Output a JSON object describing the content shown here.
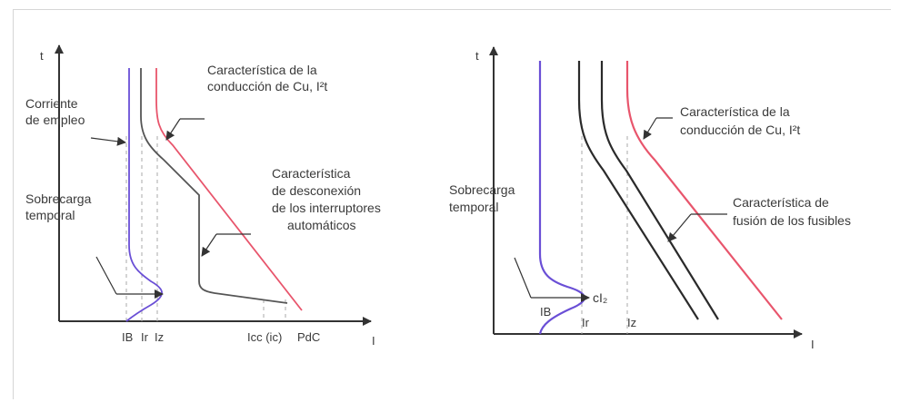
{
  "colors": {
    "axis": "#333333",
    "blue": "#6a4fd6",
    "red": "#e8556c",
    "black": "#2a2a2a",
    "gray": "#555555",
    "dashes": "#aaaaaa"
  },
  "left": {
    "t_axis": "t",
    "i_axis": "I",
    "cu_label_line1": "Característica de la",
    "cu_label_line2": "conducción de Cu, I²t",
    "empleo_line1": "Corriente",
    "empleo_line2": "de empleo",
    "sobrecarga_line1": "Sobrecarga",
    "sobrecarga_line2": "temporal",
    "desc_line1": "Característica",
    "desc_line2": "de desconexión",
    "desc_line3": "de los interruptores",
    "desc_line4": "automáticos",
    "tick_ib": "IB",
    "tick_ir": "Ir",
    "tick_iz": "Iz",
    "tick_icc": "Icc (ic)",
    "tick_pdc": "PdC"
  },
  "right": {
    "t_axis": "t",
    "i_axis": "I",
    "cu_label_line1": "Característica de la",
    "cu_label_line2": "conducción de Cu, I²t",
    "fusion_line1": "Característica de",
    "fusion_line2": "fusión de los fusibles",
    "sobrecarga_line1": "Sobrecarga",
    "sobrecarga_line2": "temporal",
    "cl_label": "cI₂",
    "tick_ib": "IB",
    "tick_ir": "Ir",
    "tick_iz": "Iz"
  }
}
